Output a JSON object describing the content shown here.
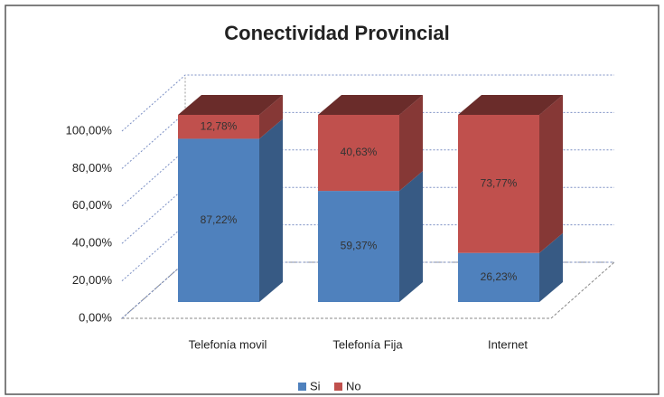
{
  "chart_data": {
    "type": "bar3d_stacked",
    "title": "Conectividad Provincial",
    "categories": [
      "Telefonía movil",
      "Telefonía  Fija",
      "Internet"
    ],
    "series": [
      {
        "name": "Si",
        "color": "#4f81bd",
        "values": [
          87.22,
          59.37,
          26.23
        ],
        "value_labels": [
          "87,22%",
          "59,37%",
          "26,23%"
        ]
      },
      {
        "name": "No",
        "color": "#c0504d",
        "values": [
          12.78,
          40.63,
          73.77
        ],
        "value_labels": [
          "12,78%",
          "40,63%",
          "73,77%"
        ]
      }
    ],
    "ylim": [
      0,
      100
    ],
    "yticks": [
      {
        "value": 0,
        "label": "0,00%"
      },
      {
        "value": 20,
        "label": "20,00%"
      },
      {
        "value": 40,
        "label": "40,00%"
      },
      {
        "value": 60,
        "label": "60,00%"
      },
      {
        "value": 80,
        "label": "80,00%"
      },
      {
        "value": 100,
        "label": "100,00%"
      }
    ],
    "grid": true,
    "legend": "bottom"
  }
}
